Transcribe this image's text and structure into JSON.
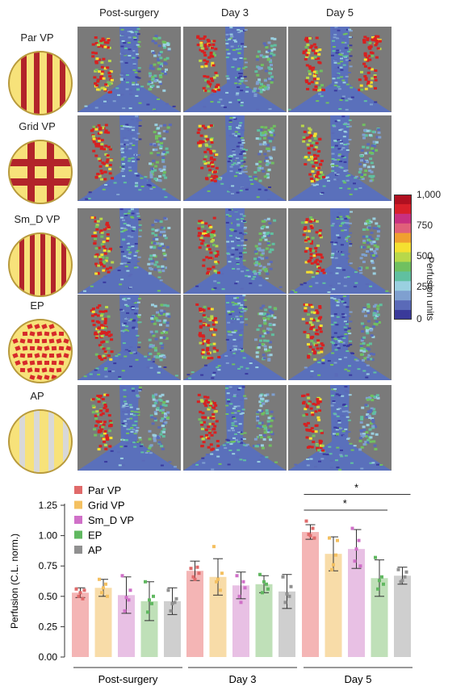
{
  "columns": [
    "Post-surgery",
    "Day 3",
    "Day 5"
  ],
  "rows": [
    "Par VP",
    "Grid VP",
    "Sm_D VP",
    "EP",
    "AP"
  ],
  "colorbar": {
    "label": "Perfusion units",
    "ticks": [
      "1,000",
      "750",
      "500",
      "250",
      "0"
    ],
    "colors": [
      "#b01020",
      "#d8202a",
      "#c83080",
      "#e0607a",
      "#f0a030",
      "#f5e030",
      "#b8d84a",
      "#70c060",
      "#60c0a0",
      "#9ad0e0",
      "#7fa0d0",
      "#5a6ab8",
      "#3a3a9a"
    ]
  },
  "chart_data": {
    "type": "bar",
    "ylabel": "Perfusion (C.L. norm.)",
    "ylim": [
      0,
      1.25
    ],
    "yticks": [
      "0.00",
      "0.25",
      "0.50",
      "0.75",
      "1.00",
      "1.25"
    ],
    "groups": [
      "Post-surgery",
      "Day 3",
      "Day 5"
    ],
    "series": [
      {
        "name": "Par VP",
        "color": "#e06a6a",
        "fill": "#f4b5b5",
        "values": [
          0.53,
          0.71,
          1.03
        ],
        "errors": [
          0.04,
          0.08,
          0.06
        ],
        "points": [
          [
            0.56,
            0.5,
            0.48,
            0.55,
            0.53
          ],
          [
            0.73,
            0.66,
            0.74,
            0.69,
            0.64
          ],
          [
            1.12,
            1.01,
            1.06,
            0.98,
            1.0
          ]
        ]
      },
      {
        "name": "Grid VP",
        "color": "#f4c060",
        "fill": "#f8dca8",
        "values": [
          0.57,
          0.66,
          0.85
        ],
        "errors": [
          0.07,
          0.15,
          0.14
        ],
        "points": [
          [
            0.64,
            0.53,
            0.6,
            0.5,
            0.57
          ],
          [
            0.91,
            0.62,
            0.55,
            0.69,
            0.64
          ],
          [
            0.98,
            0.72,
            0.84,
            0.96,
            0.76
          ]
        ]
      },
      {
        "name": "Sm_D VP",
        "color": "#d070c8",
        "fill": "#e8c0e4",
        "values": [
          0.51,
          0.59,
          0.89
        ],
        "errors": [
          0.15,
          0.11,
          0.16
        ],
        "points": [
          [
            0.67,
            0.38,
            0.47,
            0.55,
            0.49
          ],
          [
            0.67,
            0.5,
            0.62,
            0.57,
            0.45
          ],
          [
            1.06,
            0.79,
            0.96,
            0.75,
            0.89
          ]
        ]
      },
      {
        "name": "EP",
        "color": "#60b860",
        "fill": "#bfe0b8",
        "values": [
          0.46,
          0.6,
          0.65
        ],
        "errors": [
          0.16,
          0.07,
          0.15
        ],
        "points": [
          [
            0.62,
            0.37,
            0.44,
            0.5,
            0.47
          ],
          [
            0.68,
            0.53,
            0.6,
            0.56,
            0.62
          ],
          [
            0.82,
            0.56,
            0.66,
            0.6,
            0.63
          ]
        ]
      },
      {
        "name": "AP",
        "color": "#909090",
        "fill": "#cfcfcf",
        "values": [
          0.46,
          0.54,
          0.67
        ],
        "errors": [
          0.11,
          0.14,
          0.07
        ],
        "points": [
          [
            0.55,
            0.38,
            0.45,
            0.48,
            0.44
          ],
          [
            0.66,
            0.45,
            0.5,
            0.58,
            0.52
          ],
          [
            0.72,
            0.62,
            0.66,
            0.7,
            0.63
          ]
        ]
      }
    ],
    "significance": [
      {
        "label": "*",
        "from": "Par VP",
        "to": "AP",
        "group": "Day 5"
      },
      {
        "label": "*",
        "from": "Par VP",
        "to": "EP",
        "group": "Day 5"
      }
    ]
  }
}
